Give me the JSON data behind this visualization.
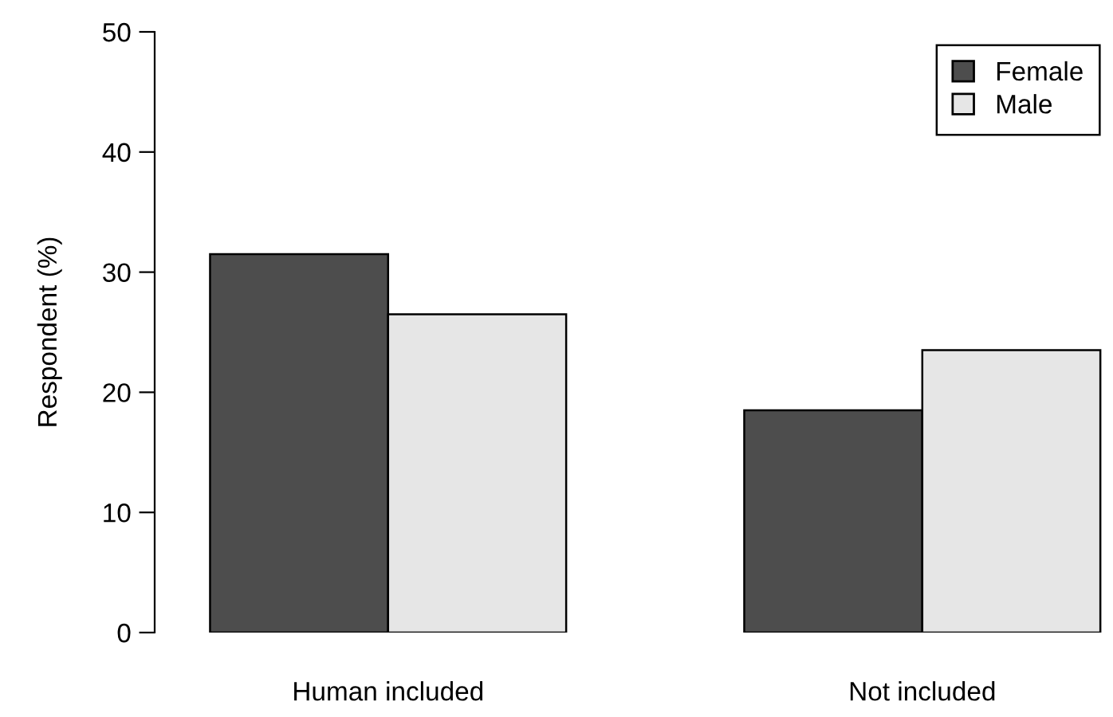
{
  "chart_data": {
    "type": "bar",
    "ylabel": "Respondent (%)",
    "categories": [
      "Human included",
      "Not included"
    ],
    "series": [
      {
        "name": "Female",
        "color": "#4d4d4d",
        "values": [
          31.5,
          18.5
        ]
      },
      {
        "name": "Male",
        "color": "#e6e6e6",
        "values": [
          26.5,
          23.5
        ]
      }
    ],
    "ylim": [
      0,
      50
    ],
    "yticks": [
      0,
      10,
      20,
      30,
      40,
      50
    ],
    "grid": false,
    "legend": "top right"
  }
}
